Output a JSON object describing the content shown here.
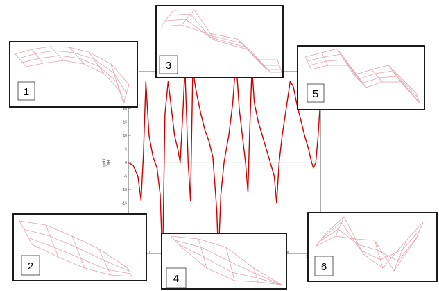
{
  "colors": {
    "frf_curve": "#cc0000",
    "mesh": "#e0a4ac",
    "frame": "#000000",
    "axis": "#333333",
    "zero_line": "#cfcfcf"
  },
  "chart_data": {
    "type": "line",
    "ylabel_lines": [
      "g/lbf",
      "dB"
    ],
    "yticks": [
      "30",
      "25",
      "20",
      "15",
      "10",
      "5",
      "0",
      "-5",
      "-10",
      "-15",
      "-20",
      "-25",
      "-30"
    ],
    "ylim": [
      -30,
      30
    ],
    "xtick_partial": "1",
    "series": [
      {
        "values": [
          [
            0,
            0
          ],
          [
            6,
            -1
          ],
          [
            12,
            -5
          ],
          [
            16,
            -14
          ],
          [
            19,
            3
          ],
          [
            22,
            30
          ],
          [
            26,
            10
          ],
          [
            31,
            2
          ],
          [
            36,
            -2
          ],
          [
            40,
            -12
          ],
          [
            43,
            -37
          ],
          [
            46,
            18
          ],
          [
            50,
            30
          ],
          [
            54,
            20
          ],
          [
            58,
            10
          ],
          [
            62,
            5
          ],
          [
            65,
            0
          ],
          [
            69,
            22
          ],
          [
            71,
            35
          ],
          [
            73,
            18
          ],
          [
            75,
            0
          ],
          [
            78,
            -14
          ],
          [
            81,
            36
          ],
          [
            83,
            30
          ],
          [
            86,
            25
          ],
          [
            91,
            18
          ],
          [
            96,
            12
          ],
          [
            101,
            8
          ],
          [
            106,
            2
          ],
          [
            109,
            -10
          ],
          [
            111,
            -18
          ],
          [
            113,
            -35
          ],
          [
            116,
            -12
          ],
          [
            120,
            0
          ],
          [
            126,
            10
          ],
          [
            131,
            22
          ],
          [
            135,
            38
          ],
          [
            139,
            20
          ],
          [
            143,
            10
          ],
          [
            147,
            0
          ],
          [
            150,
            -11
          ],
          [
            152,
            10
          ],
          [
            155,
            35
          ],
          [
            158,
            22
          ],
          [
            163,
            15
          ],
          [
            168,
            10
          ],
          [
            173,
            5
          ],
          [
            178,
            0
          ],
          [
            183,
            -5
          ],
          [
            186,
            -15
          ],
          [
            189,
            0
          ],
          [
            193,
            10
          ],
          [
            198,
            20
          ],
          [
            203,
            30
          ],
          [
            207,
            28
          ],
          [
            211,
            22
          ],
          [
            216,
            16
          ],
          [
            221,
            10
          ],
          [
            226,
            5
          ],
          [
            229,
            1
          ],
          [
            232,
            -2
          ],
          [
            235,
            0
          ],
          [
            238,
            10
          ],
          [
            241,
            24
          ]
        ]
      }
    ]
  },
  "mode_shapes": [
    {
      "number": "1"
    },
    {
      "number": "2"
    },
    {
      "number": "3"
    },
    {
      "number": "4"
    },
    {
      "number": "5"
    },
    {
      "number": "6"
    }
  ]
}
